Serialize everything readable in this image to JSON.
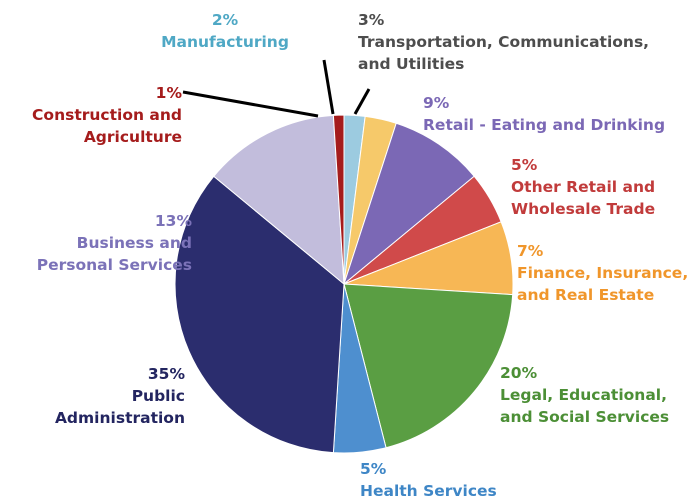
{
  "chart_data": {
    "type": "pie",
    "start_angle_deg": 0,
    "direction": "clockwise",
    "slices": [
      {
        "label": "Manufacturing",
        "percent_label": "2%",
        "value": 2,
        "color": "#9ccbe0",
        "label_color": "#4fa8c5"
      },
      {
        "label": "Transportation, Communications, and Utilities",
        "percent_label": "3%",
        "value": 3,
        "color": "#f6c96a",
        "label_color": "#4d4d4d"
      },
      {
        "label": "Retail - Eating and Drinking",
        "percent_label": "9%",
        "value": 9,
        "color": "#7b68b5",
        "label_color": "#7b68b5"
      },
      {
        "label": "Other Retail and Wholesale Trade",
        "percent_label": "5%",
        "value": 5,
        "color": "#d04a4a",
        "label_color": "#c13b3b"
      },
      {
        "label": "Finance, Insurance, and Real Estate",
        "percent_label": "7%",
        "value": 7,
        "color": "#f7b755",
        "label_color": "#f0962b"
      },
      {
        "label": "Legal, Educational, and Social Services",
        "percent_label": "20%",
        "value": 20,
        "color": "#5a9e43",
        "label_color": "#4c8f36"
      },
      {
        "label": "Health Services",
        "percent_label": "5%",
        "value": 5,
        "color": "#4e8fcf",
        "label_color": "#3e86c6"
      },
      {
        "label": "Public Administration",
        "percent_label": "35%",
        "value": 35,
        "color": "#2b2d6e",
        "label_color": "#232560"
      },
      {
        "label": "Business and Personal Services",
        "percent_label": "13%",
        "value": 13,
        "color": "#c2bddc",
        "label_color": "#7b72b8"
      },
      {
        "label": "Construction and Agriculture",
        "percent_label": "1%",
        "value": 1,
        "color": "#a51c1c",
        "label_color": "#a51c1c"
      }
    ]
  },
  "labels": {
    "manufacturing": {
      "pct": "2%",
      "name": "Manufacturing"
    },
    "transportation": {
      "pct": "3%",
      "name1": "Transportation, Communications,",
      "name2": "and Utilities"
    },
    "retail_eating": {
      "pct": "9%",
      "name": "Retail - Eating and Drinking"
    },
    "other_retail": {
      "pct": "5%",
      "name1": "Other Retail and",
      "name2": "Wholesale Trade"
    },
    "finance": {
      "pct": "7%",
      "name1": "Finance, Insurance,",
      "name2": "and Real Estate"
    },
    "legal": {
      "pct": "20%",
      "name1": "Legal, Educational,",
      "name2": "and Social Services"
    },
    "health": {
      "pct": "5%",
      "name": "Health Services"
    },
    "public_admin": {
      "pct": "35%",
      "name1": "Public",
      "name2": "Administration"
    },
    "business": {
      "pct": "13%",
      "name1": "Business and",
      "name2": "Personal Services"
    },
    "construction": {
      "pct": "1%",
      "name1": "Construction and",
      "name2": "Agriculture"
    }
  }
}
